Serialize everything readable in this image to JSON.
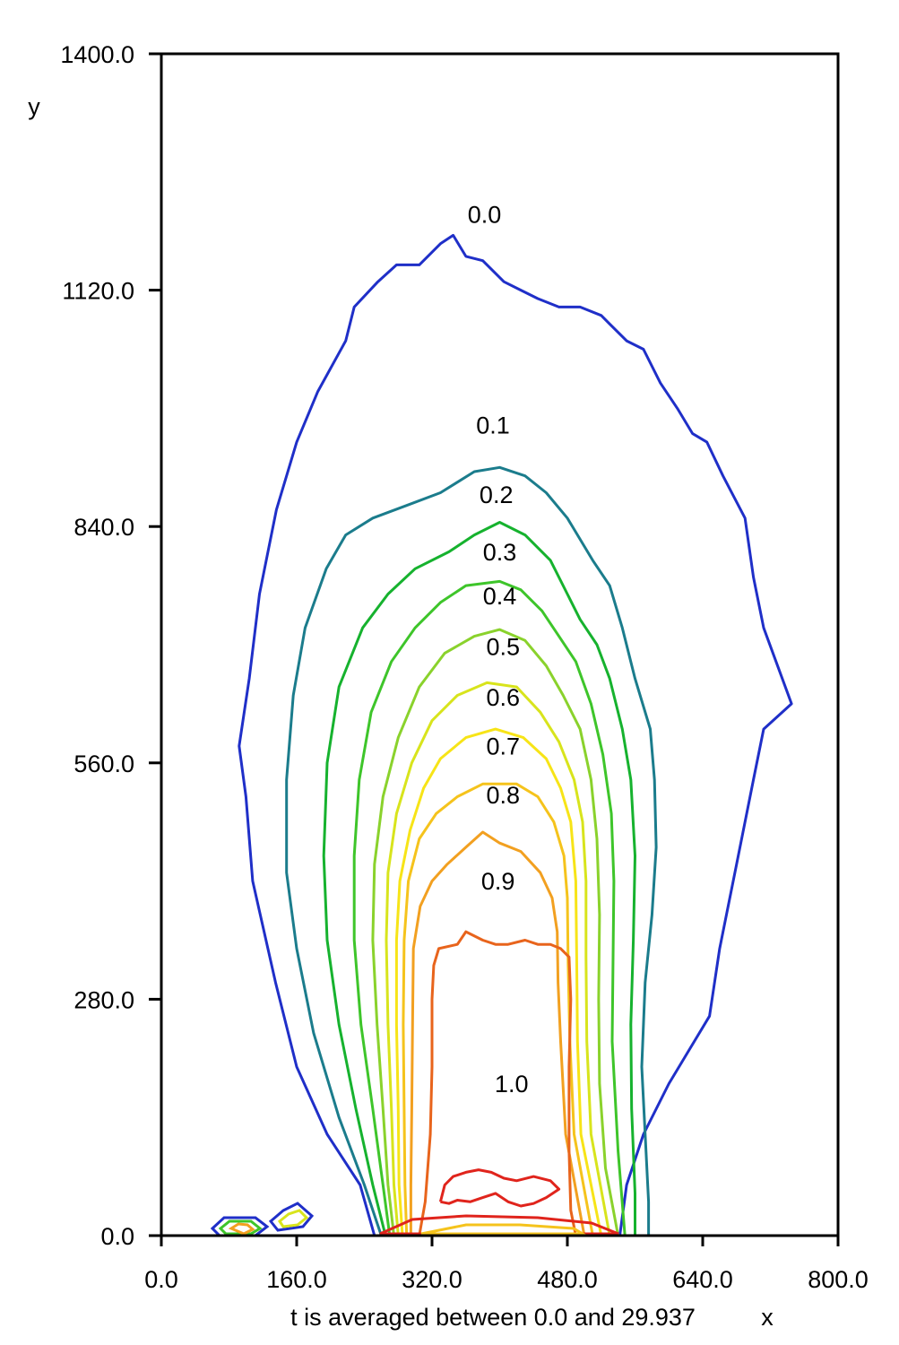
{
  "chart_data": {
    "type": "contour",
    "title": "",
    "xlabel": "x",
    "ylabel": "y",
    "caption": "t is averaged between 0.0 and 29.937",
    "xlim": [
      0,
      800
    ],
    "ylim": [
      0,
      1400
    ],
    "x_ticks": [
      "0.0",
      "160.0",
      "320.0",
      "480.0",
      "640.0",
      "800.0"
    ],
    "x_tick_values": [
      0,
      160,
      320,
      480,
      640,
      800
    ],
    "y_ticks": [
      "0.0",
      "280.0",
      "560.0",
      "840.0",
      "1120.0",
      "1400.0"
    ],
    "y_tick_values": [
      0,
      280,
      560,
      840,
      1120,
      1400
    ],
    "grid": false,
    "legend": "none",
    "levels": [
      {
        "label": "0.0",
        "value": 0.0,
        "color": "#1f2fc8",
        "label_at": [
          382,
          1200
        ],
        "points": [
          [
            252,
            0
          ],
          [
            235,
            60
          ],
          [
            196,
            120
          ],
          [
            160,
            200
          ],
          [
            135,
            300
          ],
          [
            108,
            420
          ],
          [
            100,
            520
          ],
          [
            92,
            580
          ],
          [
            104,
            660
          ],
          [
            116,
            760
          ],
          [
            136,
            860
          ],
          [
            160,
            940
          ],
          [
            185,
            1000
          ],
          [
            218,
            1060
          ],
          [
            228,
            1100
          ],
          [
            256,
            1130
          ],
          [
            278,
            1150
          ],
          [
            305,
            1150
          ],
          [
            330,
            1175
          ],
          [
            345,
            1185
          ],
          [
            360,
            1160
          ],
          [
            380,
            1155
          ],
          [
            405,
            1130
          ],
          [
            425,
            1120
          ],
          [
            445,
            1110
          ],
          [
            470,
            1100
          ],
          [
            495,
            1100
          ],
          [
            520,
            1090
          ],
          [
            530,
            1080
          ],
          [
            550,
            1060
          ],
          [
            570,
            1050
          ],
          [
            590,
            1010
          ],
          [
            610,
            980
          ],
          [
            628,
            950
          ],
          [
            645,
            940
          ],
          [
            664,
            900
          ],
          [
            690,
            850
          ],
          [
            700,
            780
          ],
          [
            712,
            720
          ],
          [
            745,
            630
          ],
          [
            712,
            600
          ],
          [
            700,
            540
          ],
          [
            680,
            440
          ],
          [
            660,
            340
          ],
          [
            648,
            260
          ],
          [
            600,
            180
          ],
          [
            570,
            120
          ],
          [
            550,
            60
          ],
          [
            542,
            0
          ]
        ]
      },
      {
        "label": "0.1",
        "value": 0.1,
        "color": "#1b7c8c",
        "label_at": [
          392,
          950
        ],
        "points": [
          [
            260,
            0
          ],
          [
            240,
            60
          ],
          [
            210,
            140
          ],
          [
            180,
            240
          ],
          [
            160,
            340
          ],
          [
            148,
            430
          ],
          [
            148,
            540
          ],
          [
            156,
            640
          ],
          [
            170,
            720
          ],
          [
            195,
            790
          ],
          [
            218,
            830
          ],
          [
            250,
            850
          ],
          [
            290,
            865
          ],
          [
            330,
            880
          ],
          [
            370,
            905
          ],
          [
            400,
            910
          ],
          [
            430,
            900
          ],
          [
            455,
            880
          ],
          [
            480,
            850
          ],
          [
            510,
            800
          ],
          [
            530,
            770
          ],
          [
            545,
            720
          ],
          [
            560,
            660
          ],
          [
            578,
            600
          ],
          [
            583,
            540
          ],
          [
            585,
            460
          ],
          [
            580,
            380
          ],
          [
            572,
            300
          ],
          [
            568,
            200
          ],
          [
            572,
            120
          ],
          [
            576,
            40
          ],
          [
            576,
            0
          ]
        ]
      },
      {
        "label": "0.2",
        "value": 0.2,
        "color": "#16b22e",
        "label_at": [
          396,
          868
        ],
        "points": [
          [
            265,
            0
          ],
          [
            250,
            60
          ],
          [
            230,
            150
          ],
          [
            210,
            250
          ],
          [
            196,
            350
          ],
          [
            192,
            450
          ],
          [
            196,
            560
          ],
          [
            210,
            650
          ],
          [
            238,
            720
          ],
          [
            268,
            760
          ],
          [
            300,
            790
          ],
          [
            340,
            810
          ],
          [
            370,
            830
          ],
          [
            400,
            845
          ],
          [
            430,
            830
          ],
          [
            460,
            800
          ],
          [
            480,
            760
          ],
          [
            495,
            730
          ],
          [
            515,
            700
          ],
          [
            530,
            660
          ],
          [
            545,
            600
          ],
          [
            555,
            540
          ],
          [
            560,
            450
          ],
          [
            558,
            350
          ],
          [
            555,
            250
          ],
          [
            556,
            150
          ],
          [
            560,
            50
          ],
          [
            560,
            0
          ]
        ]
      },
      {
        "label": "0.3",
        "value": 0.3,
        "color": "#3ec52a",
        "label_at": [
          400,
          800
        ],
        "points": [
          [
            270,
            0
          ],
          [
            262,
            60
          ],
          [
            250,
            150
          ],
          [
            236,
            250
          ],
          [
            228,
            350
          ],
          [
            228,
            450
          ],
          [
            234,
            540
          ],
          [
            248,
            620
          ],
          [
            272,
            680
          ],
          [
            300,
            720
          ],
          [
            330,
            750
          ],
          [
            360,
            770
          ],
          [
            400,
            775
          ],
          [
            425,
            765
          ],
          [
            450,
            740
          ],
          [
            470,
            710
          ],
          [
            490,
            680
          ],
          [
            508,
            630
          ],
          [
            522,
            570
          ],
          [
            532,
            500
          ],
          [
            535,
            420
          ],
          [
            534,
            330
          ],
          [
            533,
            230
          ],
          [
            540,
            100
          ],
          [
            548,
            0
          ]
        ]
      },
      {
        "label": "0.4",
        "value": 0.4,
        "color": "#8ad22c",
        "label_at": [
          400,
          748
        ],
        "points": [
          [
            275,
            0
          ],
          [
            268,
            60
          ],
          [
            262,
            150
          ],
          [
            255,
            250
          ],
          [
            250,
            350
          ],
          [
            252,
            440
          ],
          [
            262,
            520
          ],
          [
            280,
            590
          ],
          [
            305,
            650
          ],
          [
            335,
            690
          ],
          [
            370,
            710
          ],
          [
            400,
            718
          ],
          [
            430,
            705
          ],
          [
            455,
            675
          ],
          [
            475,
            640
          ],
          [
            495,
            600
          ],
          [
            508,
            540
          ],
          [
            515,
            470
          ],
          [
            518,
            380
          ],
          [
            517,
            280
          ],
          [
            518,
            180
          ],
          [
            525,
            80
          ],
          [
            540,
            0
          ]
        ]
      },
      {
        "label": "0.5",
        "value": 0.5,
        "color": "#d8e41c",
        "label_at": [
          404,
          688
        ],
        "points": [
          [
            280,
            0
          ],
          [
            275,
            60
          ],
          [
            272,
            150
          ],
          [
            268,
            250
          ],
          [
            266,
            350
          ],
          [
            268,
            430
          ],
          [
            278,
            500
          ],
          [
            296,
            560
          ],
          [
            320,
            610
          ],
          [
            350,
            640
          ],
          [
            385,
            655
          ],
          [
            420,
            650
          ],
          [
            448,
            620
          ],
          [
            470,
            585
          ],
          [
            488,
            540
          ],
          [
            498,
            490
          ],
          [
            502,
            420
          ],
          [
            502,
            330
          ],
          [
            503,
            230
          ],
          [
            508,
            120
          ],
          [
            530,
            0
          ]
        ]
      },
      {
        "label": "0.6",
        "value": 0.6,
        "color": "#f7e417",
        "label_at": [
          404,
          628
        ],
        "points": [
          [
            285,
            0
          ],
          [
            281,
            60
          ],
          [
            280,
            150
          ],
          [
            278,
            250
          ],
          [
            278,
            350
          ],
          [
            282,
            420
          ],
          [
            294,
            480
          ],
          [
            310,
            530
          ],
          [
            330,
            565
          ],
          [
            360,
            590
          ],
          [
            395,
            600
          ],
          [
            428,
            590
          ],
          [
            455,
            565
          ],
          [
            472,
            530
          ],
          [
            484,
            490
          ],
          [
            490,
            420
          ],
          [
            491,
            330
          ],
          [
            492,
            230
          ],
          [
            496,
            120
          ],
          [
            520,
            0
          ]
        ]
      },
      {
        "label": "0.7",
        "value": 0.7,
        "color": "#f5c31c",
        "label_at": [
          404,
          570
        ],
        "points": [
          [
            290,
            0
          ],
          [
            288,
            60
          ],
          [
            287,
            150
          ],
          [
            286,
            250
          ],
          [
            287,
            350
          ],
          [
            292,
            420
          ],
          [
            305,
            470
          ],
          [
            325,
            500
          ],
          [
            350,
            520
          ],
          [
            380,
            535
          ],
          [
            420,
            535
          ],
          [
            445,
            520
          ],
          [
            464,
            490
          ],
          [
            476,
            450
          ],
          [
            480,
            400
          ],
          [
            481,
            320
          ],
          [
            483,
            230
          ],
          [
            488,
            120
          ],
          [
            510,
            0
          ]
        ]
      },
      {
        "label": "0.8",
        "value": 0.8,
        "color": "#f2a020",
        "label_at": [
          404,
          512
        ],
        "points": [
          [
            295,
            0
          ],
          [
            295,
            60
          ],
          [
            296,
            150
          ],
          [
            297,
            250
          ],
          [
            298,
            340
          ],
          [
            306,
            390
          ],
          [
            320,
            420
          ],
          [
            338,
            440
          ],
          [
            360,
            460
          ],
          [
            380,
            478
          ],
          [
            400,
            465
          ],
          [
            425,
            455
          ],
          [
            448,
            430
          ],
          [
            462,
            400
          ],
          [
            468,
            360
          ],
          [
            469,
            300
          ],
          [
            472,
            230
          ],
          [
            478,
            120
          ],
          [
            500,
            0
          ]
        ]
      },
      {
        "label": "0.9",
        "value": 0.9,
        "color": "#e8641c",
        "label_at": [
          398,
          410
        ],
        "points": [
          [
            305,
            0
          ],
          [
            312,
            40
          ],
          [
            318,
            120
          ],
          [
            320,
            200
          ],
          [
            320,
            280
          ],
          [
            322,
            320
          ],
          [
            328,
            340
          ],
          [
            350,
            345
          ],
          [
            360,
            360
          ],
          [
            380,
            350
          ],
          [
            395,
            345
          ],
          [
            410,
            345
          ],
          [
            430,
            350
          ],
          [
            445,
            345
          ],
          [
            460,
            345
          ],
          [
            472,
            340
          ],
          [
            482,
            330
          ],
          [
            484,
            280
          ],
          [
            482,
            200
          ],
          [
            482,
            100
          ],
          [
            484,
            30
          ],
          [
            490,
            0
          ]
        ]
      },
      {
        "label": "1.0",
        "value": 1.0,
        "color": "#e0241c",
        "label_at": [
          414,
          170
        ],
        "points": [
          [
            330,
            40
          ],
          [
            335,
            60
          ],
          [
            345,
            70
          ],
          [
            360,
            75
          ],
          [
            375,
            78
          ],
          [
            390,
            75
          ],
          [
            405,
            68
          ],
          [
            420,
            65
          ],
          [
            440,
            70
          ],
          [
            460,
            65
          ],
          [
            470,
            55
          ],
          [
            455,
            45
          ],
          [
            440,
            38
          ],
          [
            425,
            35
          ],
          [
            410,
            40
          ],
          [
            395,
            50
          ],
          [
            380,
            45
          ],
          [
            365,
            40
          ],
          [
            350,
            42
          ],
          [
            340,
            38
          ],
          [
            330,
            40
          ]
        ]
      }
    ]
  }
}
